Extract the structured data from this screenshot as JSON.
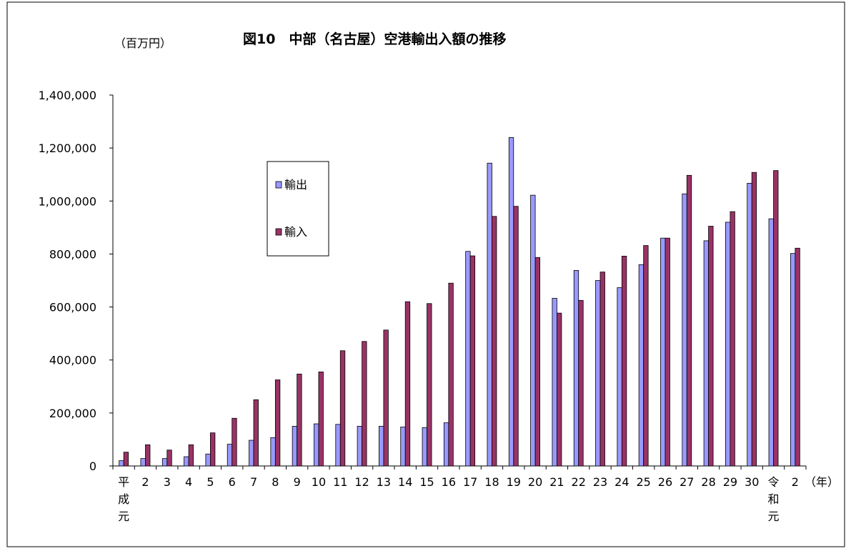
{
  "chart_data": {
    "type": "bar",
    "title": "図10　中部（名古屋）空港輸出入額の推移",
    "unit_label": "（百万円）",
    "x_unit_label": "（年）",
    "xlabel": "",
    "ylabel": "",
    "categories": [
      "平成元",
      "2",
      "3",
      "4",
      "5",
      "6",
      "7",
      "8",
      "9",
      "10",
      "11",
      "12",
      "13",
      "14",
      "15",
      "16",
      "17",
      "18",
      "19",
      "20",
      "21",
      "22",
      "23",
      "24",
      "25",
      "26",
      "27",
      "28",
      "29",
      "30",
      "令和元",
      "2"
    ],
    "series": [
      {
        "name": "輸出",
        "color": "#9999ff",
        "values": [
          20000,
          28000,
          28000,
          35000,
          45000,
          82000,
          97000,
          107000,
          150000,
          159000,
          157000,
          150000,
          150000,
          147000,
          145000,
          163000,
          810000,
          1143000,
          1240000,
          1022000,
          633000,
          738000,
          700000,
          673000,
          760000,
          860000,
          1027000,
          850000,
          920000,
          1067000,
          933000,
          802000
        ]
      },
      {
        "name": "輸入",
        "color": "#993366",
        "values": [
          52000,
          80000,
          60000,
          80000,
          125000,
          180000,
          250000,
          325000,
          347000,
          355000,
          435000,
          470000,
          513000,
          620000,
          613000,
          690000,
          793000,
          942000,
          980000,
          787000,
          577000,
          625000,
          732000,
          792000,
          832000,
          860000,
          1097000,
          905000,
          960000,
          1108000,
          1115000,
          822000
        ]
      }
    ],
    "ylim": [
      0,
      1400000
    ],
    "yticks": [
      "0",
      "200,000",
      "400,000",
      "600,000",
      "800,000",
      "1,000,000",
      "1,200,000",
      "1,400,000"
    ],
    "grid": false,
    "legend_position": "upper-left"
  }
}
